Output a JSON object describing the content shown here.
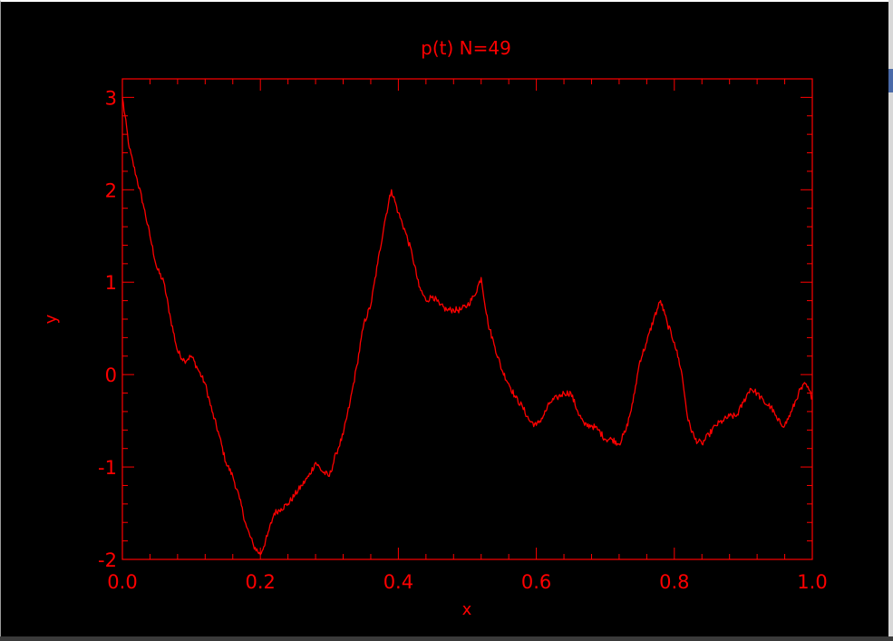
{
  "window": {
    "background": "#000000",
    "foreground": "#ff0000"
  },
  "chart_data": {
    "type": "line",
    "title": "p(t)  N=49",
    "xlabel": "x",
    "ylabel": "y",
    "xlim": [
      0.0,
      1.0
    ],
    "ylim": [
      -2.0,
      3.2
    ],
    "xticks": [
      0.0,
      0.2,
      0.4,
      0.6,
      0.8,
      1.0
    ],
    "xtick_labels": [
      "0.0",
      "0.2",
      "0.4",
      "0.6",
      "0.8",
      "1.0"
    ],
    "yticks": [
      -2,
      -1,
      0,
      1,
      2,
      3
    ],
    "ytick_labels": [
      "-2",
      "-1",
      "0",
      "1",
      "2",
      "3"
    ],
    "grid": false,
    "color": "#ff0000",
    "series": [
      {
        "x": [
          0.0,
          0.01,
          0.02,
          0.03,
          0.04,
          0.05,
          0.06,
          0.07,
          0.08,
          0.09,
          0.1,
          0.11,
          0.12,
          0.13,
          0.14,
          0.15,
          0.16,
          0.17,
          0.18,
          0.19,
          0.2,
          0.21,
          0.22,
          0.23,
          0.24,
          0.25,
          0.26,
          0.27,
          0.28,
          0.29,
          0.3,
          0.31,
          0.32,
          0.33,
          0.34,
          0.35,
          0.36,
          0.37,
          0.38,
          0.39,
          0.4,
          0.41,
          0.42,
          0.43,
          0.44,
          0.45,
          0.46,
          0.47,
          0.48,
          0.49,
          0.5,
          0.51,
          0.52,
          0.53,
          0.54,
          0.55,
          0.56,
          0.57,
          0.58,
          0.59,
          0.6,
          0.61,
          0.62,
          0.63,
          0.64,
          0.65,
          0.66,
          0.67,
          0.68,
          0.69,
          0.7,
          0.71,
          0.72,
          0.73,
          0.74,
          0.75,
          0.76,
          0.77,
          0.78,
          0.79,
          0.8,
          0.81,
          0.82,
          0.83,
          0.84,
          0.85,
          0.86,
          0.87,
          0.88,
          0.89,
          0.9,
          0.91,
          0.92,
          0.93,
          0.94,
          0.95,
          0.96,
          0.97,
          0.98,
          0.99,
          1.0
        ],
        "y": [
          3.0,
          2.45,
          2.15,
          1.85,
          1.5,
          1.15,
          1.0,
          0.6,
          0.25,
          0.15,
          0.2,
          0.05,
          -0.1,
          -0.4,
          -0.65,
          -0.95,
          -1.1,
          -1.35,
          -1.65,
          -1.85,
          -1.95,
          -1.75,
          -1.5,
          -1.45,
          -1.4,
          -1.3,
          -1.2,
          -1.1,
          -0.95,
          -1.05,
          -1.1,
          -0.85,
          -0.65,
          -0.3,
          0.1,
          0.55,
          0.75,
          1.2,
          1.65,
          2.0,
          1.75,
          1.55,
          1.3,
          0.95,
          0.8,
          0.85,
          0.75,
          0.7,
          0.7,
          0.7,
          0.75,
          0.85,
          1.05,
          0.55,
          0.3,
          0.05,
          -0.1,
          -0.25,
          -0.35,
          -0.5,
          -0.55,
          -0.45,
          -0.3,
          -0.25,
          -0.2,
          -0.2,
          -0.4,
          -0.55,
          -0.55,
          -0.6,
          -0.7,
          -0.7,
          -0.75,
          -0.6,
          -0.3,
          0.15,
          0.35,
          0.6,
          0.8,
          0.55,
          0.35,
          0.05,
          -0.5,
          -0.7,
          -0.75,
          -0.65,
          -0.55,
          -0.5,
          -0.45,
          -0.45,
          -0.3,
          -0.15,
          -0.2,
          -0.3,
          -0.35,
          -0.5,
          -0.55,
          -0.4,
          -0.2,
          -0.1,
          -0.25
        ]
      }
    ]
  }
}
